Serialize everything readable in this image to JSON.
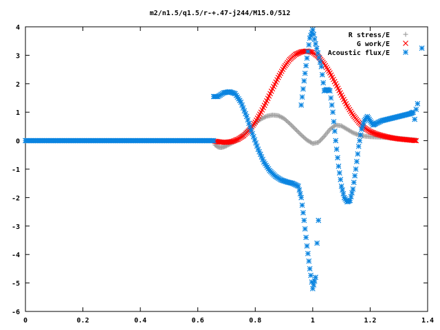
{
  "chart_data": {
    "type": "scatter",
    "title": "m2/n1.5/q1.5/r-+.47-j244/M15.0/512",
    "xlabel": "",
    "ylabel": "",
    "xlim": [
      0,
      1.4
    ],
    "ylim": [
      -6,
      4
    ],
    "x_ticks": [
      "0",
      "0.2",
      "0.4",
      "0.6",
      "0.8",
      "1",
      "1.2",
      "1.4"
    ],
    "y_ticks": [
      "4",
      "3",
      "2",
      "1",
      "0",
      "-1",
      "-2",
      "-3",
      "-4",
      "-5",
      "-6"
    ],
    "grid": false,
    "legend_position": "top-right",
    "series": [
      {
        "name": "R stress/E",
        "marker": "plus",
        "color": "#a0a0a0",
        "points": [
          [
            0.0,
            0.0
          ],
          [
            0.1,
            0.0
          ],
          [
            0.2,
            0.0
          ],
          [
            0.3,
            0.0
          ],
          [
            0.4,
            0.0
          ],
          [
            0.5,
            0.0
          ],
          [
            0.6,
            0.0
          ],
          [
            0.655,
            0.0
          ],
          [
            0.66,
            -0.15
          ],
          [
            0.67,
            -0.22
          ],
          [
            0.68,
            -0.24
          ],
          [
            0.69,
            -0.22
          ],
          [
            0.7,
            -0.18
          ],
          [
            0.72,
            -0.08
          ],
          [
            0.74,
            0.05
          ],
          [
            0.76,
            0.22
          ],
          [
            0.78,
            0.42
          ],
          [
            0.8,
            0.62
          ],
          [
            0.82,
            0.76
          ],
          [
            0.84,
            0.86
          ],
          [
            0.86,
            0.9
          ],
          [
            0.88,
            0.88
          ],
          [
            0.9,
            0.78
          ],
          [
            0.92,
            0.6
          ],
          [
            0.94,
            0.4
          ],
          [
            0.96,
            0.2
          ],
          [
            0.98,
            0.02
          ],
          [
            1.0,
            -0.1
          ],
          [
            1.02,
            -0.06
          ],
          [
            1.04,
            0.15
          ],
          [
            1.06,
            0.4
          ],
          [
            1.08,
            0.55
          ],
          [
            1.1,
            0.52
          ],
          [
            1.12,
            0.4
          ],
          [
            1.14,
            0.28
          ],
          [
            1.16,
            0.2
          ],
          [
            1.18,
            0.16
          ],
          [
            1.2,
            0.14
          ],
          [
            1.22,
            0.13
          ],
          [
            1.24,
            0.12
          ],
          [
            1.26,
            0.11
          ],
          [
            1.28,
            0.1
          ],
          [
            1.3,
            0.08
          ],
          [
            1.32,
            0.06
          ],
          [
            1.34,
            0.04
          ],
          [
            1.36,
            0.02
          ]
        ]
      },
      {
        "name": "G work/E",
        "marker": "cross",
        "color": "#ff0000",
        "points": [
          [
            0.66,
            -0.02
          ],
          [
            0.68,
            -0.05
          ],
          [
            0.7,
            -0.06
          ],
          [
            0.72,
            -0.03
          ],
          [
            0.74,
            0.05
          ],
          [
            0.76,
            0.18
          ],
          [
            0.78,
            0.38
          ],
          [
            0.8,
            0.65
          ],
          [
            0.82,
            1.0
          ],
          [
            0.84,
            1.4
          ],
          [
            0.86,
            1.82
          ],
          [
            0.88,
            2.22
          ],
          [
            0.9,
            2.58
          ],
          [
            0.92,
            2.85
          ],
          [
            0.94,
            3.03
          ],
          [
            0.96,
            3.12
          ],
          [
            0.98,
            3.15
          ],
          [
            1.0,
            3.1
          ],
          [
            1.02,
            2.95
          ],
          [
            1.04,
            2.7
          ],
          [
            1.06,
            2.38
          ],
          [
            1.08,
            2.0
          ],
          [
            1.1,
            1.6
          ],
          [
            1.12,
            1.22
          ],
          [
            1.14,
            0.9
          ],
          [
            1.16,
            0.65
          ],
          [
            1.18,
            0.45
          ],
          [
            1.2,
            0.32
          ],
          [
            1.22,
            0.24
          ],
          [
            1.24,
            0.18
          ],
          [
            1.26,
            0.13
          ],
          [
            1.28,
            0.09
          ],
          [
            1.3,
            0.06
          ],
          [
            1.32,
            0.04
          ],
          [
            1.34,
            0.02
          ],
          [
            1.36,
            0.0
          ]
        ]
      },
      {
        "name": "Acoustic flux/E",
        "marker": "star",
        "color": "#0a84e0",
        "points": [
          [
            0.0,
            0.0
          ],
          [
            0.1,
            0.0
          ],
          [
            0.2,
            0.0
          ],
          [
            0.3,
            0.0
          ],
          [
            0.4,
            0.0
          ],
          [
            0.5,
            0.0
          ],
          [
            0.6,
            0.0
          ],
          [
            0.655,
            0.0
          ],
          [
            0.655,
            1.55
          ],
          [
            0.67,
            1.55
          ],
          [
            0.69,
            1.68
          ],
          [
            0.71,
            1.72
          ],
          [
            0.73,
            1.65
          ],
          [
            0.75,
            1.35
          ],
          [
            0.77,
            0.85
          ],
          [
            0.79,
            0.25
          ],
          [
            0.81,
            -0.3
          ],
          [
            0.83,
            -0.75
          ],
          [
            0.85,
            -1.05
          ],
          [
            0.87,
            -1.25
          ],
          [
            0.89,
            -1.38
          ],
          [
            0.91,
            -1.45
          ],
          [
            0.93,
            -1.5
          ],
          [
            0.95,
            -1.6
          ],
          [
            0.96,
            -2.0
          ],
          [
            0.97,
            -2.8
          ],
          [
            0.98,
            -3.7
          ],
          [
            0.99,
            -4.5
          ],
          [
            1.0,
            -5.2
          ],
          [
            1.01,
            -4.8
          ],
          [
            1.015,
            -3.6
          ],
          [
            1.02,
            -2.8
          ],
          [
            0.96,
            1.25
          ],
          [
            0.97,
            2.1
          ],
          [
            0.98,
            2.9
          ],
          [
            0.99,
            3.6
          ],
          [
            1.0,
            3.9
          ],
          [
            1.01,
            3.4
          ],
          [
            1.03,
            2.6
          ],
          [
            1.04,
            1.75
          ],
          [
            1.05,
            1.8
          ],
          [
            1.06,
            1.75
          ],
          [
            1.07,
            1.0
          ],
          [
            1.08,
            0.0
          ],
          [
            1.09,
            -0.9
          ],
          [
            1.1,
            -1.6
          ],
          [
            1.11,
            -2.0
          ],
          [
            1.12,
            -2.15
          ],
          [
            1.13,
            -2.1
          ],
          [
            1.14,
            -1.7
          ],
          [
            1.15,
            -1.0
          ],
          [
            1.16,
            -0.2
          ],
          [
            1.17,
            0.4
          ],
          [
            1.18,
            0.7
          ],
          [
            1.19,
            0.85
          ],
          [
            1.2,
            0.7
          ],
          [
            1.21,
            0.55
          ],
          [
            1.22,
            0.6
          ],
          [
            1.24,
            0.7
          ],
          [
            1.26,
            0.75
          ],
          [
            1.28,
            0.8
          ],
          [
            1.3,
            0.85
          ],
          [
            1.32,
            0.9
          ],
          [
            1.34,
            0.95
          ],
          [
            1.35,
            1.0
          ],
          [
            1.355,
            0.75
          ],
          [
            1.36,
            1.1
          ],
          [
            1.365,
            1.3
          ],
          [
            1.38,
            3.25
          ]
        ]
      }
    ]
  }
}
